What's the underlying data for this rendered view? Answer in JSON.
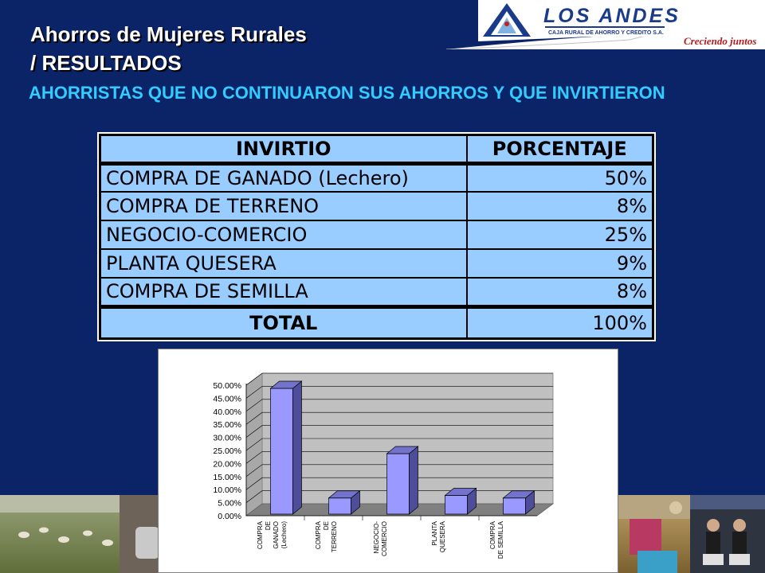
{
  "header": {
    "logo_name": "LOS ANDES",
    "logo_tagline": "CAJA RURAL DE AHORRO Y CREDITO S.A.",
    "logo_slogan": "Creciendo juntos"
  },
  "title_line1": "Ahorros de Mujeres Rurales",
  "title_line2": "/ RESULTADOS",
  "subtitle": "AHORRISTAS QUE NO CONTINUARON SUS AHORROS Y QUE INVIRTIERON",
  "table": {
    "col_a_header": "INVIRTIO",
    "col_b_header": "PORCENTAJE",
    "rows": [
      {
        "label": "COMPRA DE GANADO (Lechero)",
        "value": "50%"
      },
      {
        "label": "COMPRA DE TERRENO",
        "value": "8%"
      },
      {
        "label": "NEGOCIO-COMERCIO",
        "value": "25%"
      },
      {
        "label": "PLANTA QUESERA",
        "value": "9%"
      },
      {
        "label": "COMPRA DE SEMILLA",
        "value": "8%"
      }
    ],
    "total_label": "TOTAL",
    "total_value": "100%"
  },
  "colors": {
    "background": "#0b2468",
    "subtitle": "#33ccff",
    "table_fill": "#99ccff",
    "bar_fill": "#9999ff"
  },
  "chart_data": {
    "type": "bar",
    "categories": [
      [
        "COMPRA",
        "DE",
        "GANADO",
        "(Lechero)"
      ],
      [
        "COMPRA",
        "DE",
        "TERRENO"
      ],
      [
        "NEGOCIO-",
        "COMERCIO"
      ],
      [
        "PLANTA",
        "QUESERA"
      ],
      [
        "COMPRA",
        "DE SEMILLA"
      ]
    ],
    "values": [
      50,
      8,
      25,
      9,
      8
    ],
    "ylim": [
      0,
      50
    ],
    "yticks": [
      "0.00%",
      "5.00%",
      "10.00%",
      "15.00%",
      "20.00%",
      "25.00%",
      "30.00%",
      "35.00%",
      "40.00%",
      "45.00%",
      "50.00%"
    ],
    "grid": true,
    "style": "3d"
  }
}
